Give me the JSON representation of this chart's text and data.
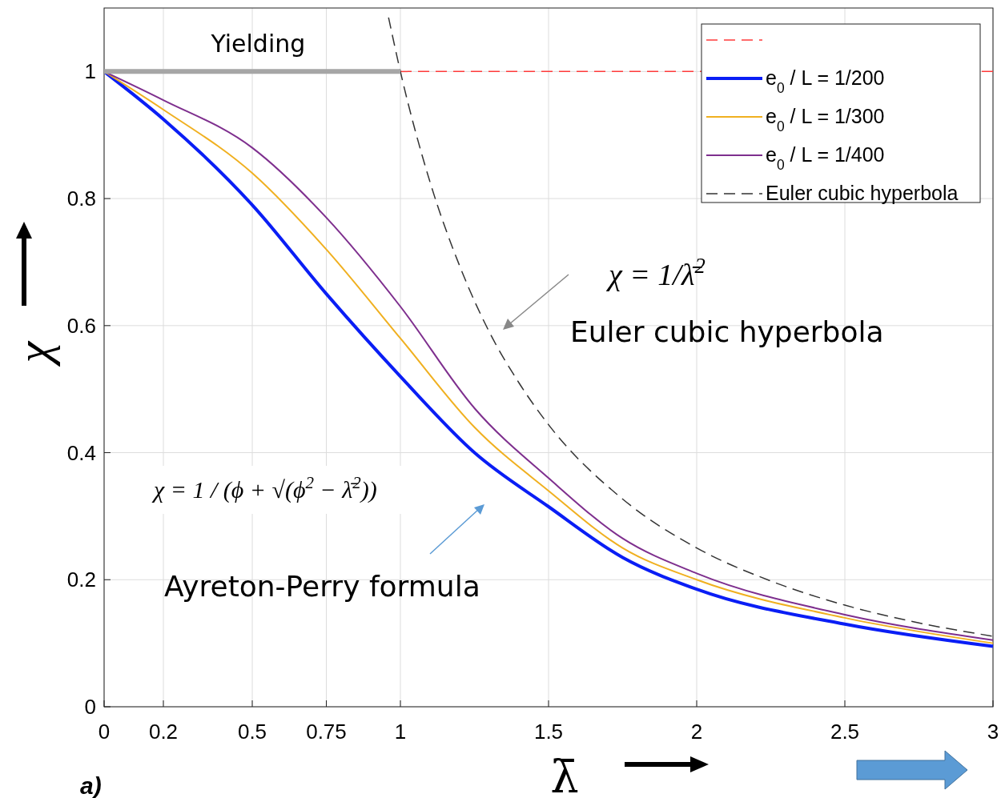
{
  "chart_data": {
    "type": "line",
    "xlabel": "λ̄",
    "ylabel": "χ",
    "xlim": [
      0,
      3
    ],
    "ylim": [
      0,
      1.1
    ],
    "xticks": [
      0,
      0.2,
      0.5,
      0.75,
      1,
      1.5,
      2,
      2.5,
      3
    ],
    "yticks": [
      0,
      0.2,
      0.4,
      0.6,
      0.8,
      1
    ],
    "grid": true,
    "legend": "top right",
    "series": [
      {
        "color": "#ff3b3b",
        "line_style": "dashed",
        "x": [
          1,
          3
        ],
        "values": [
          1,
          1
        ]
      },
      {
        "name": "e$_{0}$ / L = 1/200",
        "color": "#0a1ef5",
        "x": [
          0,
          0.2,
          0.5,
          0.75,
          1,
          1.25,
          1.5,
          1.75,
          2,
          2.5,
          3
        ],
        "values": [
          1,
          0.925,
          0.79,
          0.65,
          0.52,
          0.4,
          0.315,
          0.235,
          0.185,
          0.13,
          0.095
        ]
      },
      {
        "name": "e$_{0}$ / L = 1/300",
        "color": "#f0b020",
        "x": [
          0,
          0.2,
          0.5,
          0.75,
          1,
          1.25,
          1.5,
          1.75,
          2,
          2.5,
          3
        ],
        "values": [
          1,
          0.94,
          0.84,
          0.72,
          0.58,
          0.44,
          0.34,
          0.25,
          0.2,
          0.14,
          0.1
        ]
      },
      {
        "name": "e$_{0}$ / L = 1/400",
        "color": "#7e2f8e",
        "x": [
          0,
          0.2,
          0.5,
          0.75,
          1,
          1.25,
          1.5,
          1.75,
          2,
          2.5,
          3
        ],
        "values": [
          1,
          0.955,
          0.88,
          0.77,
          0.63,
          0.47,
          0.36,
          0.265,
          0.21,
          0.145,
          0.105
        ]
      },
      {
        "name": "Euler cubic hyperbola",
        "color": "#333333",
        "line_style": "dashed",
        "x": [
          0.96,
          1,
          1.1,
          1.2,
          1.3,
          1.4,
          1.5,
          1.75,
          2,
          2.25,
          2.5,
          2.75,
          3
        ],
        "values": [
          1.085,
          1,
          0.826,
          0.694,
          0.59,
          0.51,
          0.444,
          0.327,
          0.25,
          0.198,
          0.16,
          0.132,
          0.111
        ]
      },
      {
        "name": "Yielding",
        "color": "#a6a6a6",
        "x": [
          0,
          1
        ],
        "values": [
          1,
          1
        ]
      }
    ],
    "annotations": [
      "χ = 1/λ̄$^{2}$",
      "Euler cubic hyperbola",
      "χ = 1 / (ϕ + √(ϕ$^{2}$ − λ̄$^{2}$))",
      "Ayreton-Perry formula",
      "a)"
    ]
  }
}
